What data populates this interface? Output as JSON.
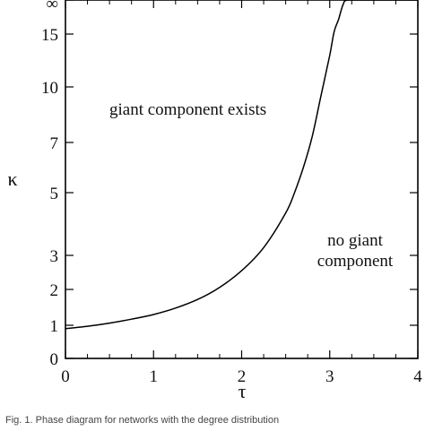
{
  "chart_data": {
    "type": "line",
    "xlabel": "τ",
    "ylabel": "κ",
    "xlim": [
      0,
      4
    ],
    "x_ticks": [
      "0",
      "1",
      "2",
      "3",
      "4"
    ],
    "y_ticks": [
      "0",
      "1",
      "2",
      "3",
      "5",
      "7",
      "10",
      "15",
      "∞"
    ],
    "y_scale": "nonlinear (compressed toward ∞)",
    "series": [
      {
        "x": [
          0.0,
          0.25,
          0.5,
          0.75,
          1.0,
          1.25,
          1.5,
          1.75,
          2.0,
          2.25,
          2.5,
          2.6,
          2.7,
          2.8,
          2.9,
          3.0,
          3.05,
          3.1,
          3.15,
          3.2,
          3.4,
          4.0
        ],
        "y": [
          0.9,
          0.97,
          1.06,
          1.17,
          1.3,
          1.48,
          1.72,
          2.06,
          2.55,
          3.25,
          4.35,
          5.0,
          6.0,
          7.3,
          9.5,
          13.0,
          15.5,
          18.0,
          21.0,
          "∞",
          "∞",
          "∞"
        ]
      }
    ],
    "annotations": [
      "giant component exists",
      "no giant",
      "component"
    ]
  },
  "caption": "Fig. 1. Phase diagram for networks with the degree distribution"
}
